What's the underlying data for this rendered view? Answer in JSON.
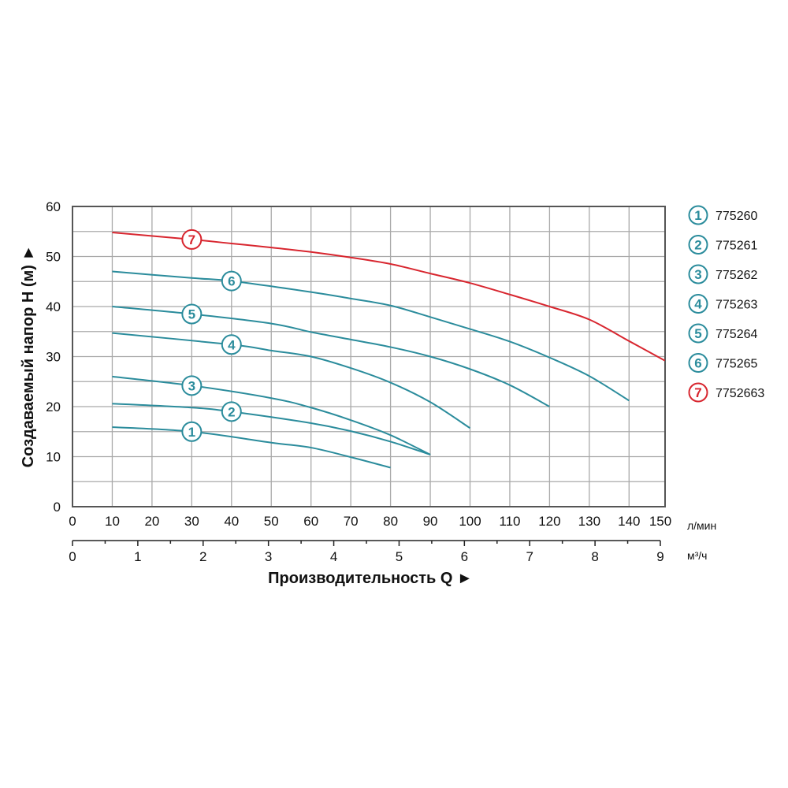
{
  "chart_data": {
    "type": "line",
    "title": "",
    "xlabel": "Производительность Q ►",
    "ylabel": "Создаваемый напор H (м) ►",
    "x_unit": "л/мин",
    "x2_unit": "м³/ч",
    "xlim": [
      0,
      150
    ],
    "ylim": [
      0,
      60
    ],
    "x2lim": [
      0,
      9
    ],
    "x_ticks": [
      "0",
      "10",
      "20",
      "30",
      "40",
      "50",
      "60",
      "70",
      "80",
      "90",
      "100",
      "110",
      "120",
      "130",
      "140",
      "150"
    ],
    "x2_ticks": [
      "0",
      "1",
      "2",
      "3",
      "4",
      "5",
      "6",
      "7",
      "8",
      "9"
    ],
    "y_ticks": [
      "0",
      "10",
      "20",
      "30",
      "40",
      "50",
      "60"
    ],
    "grid": true,
    "legend_position": "right",
    "colors": {
      "teal": "#2b8c9c",
      "red": "#d8262f",
      "grid": "#a9a9a9",
      "frame": "#555555"
    },
    "series": [
      {
        "name": "775260",
        "badge": "1",
        "color": "#2b8c9c",
        "x": [
          10,
          30,
          50,
          60,
          70,
          80
        ],
        "y": [
          15.9,
          15.0,
          12.8,
          11.8,
          9.9,
          7.8
        ]
      },
      {
        "name": "775261",
        "badge": "2",
        "color": "#2b8c9c",
        "x": [
          10,
          30,
          40,
          60,
          70,
          80,
          90
        ],
        "y": [
          20.6,
          19.8,
          19.0,
          16.7,
          15.1,
          13.0,
          10.4
        ]
      },
      {
        "name": "775262",
        "badge": "3",
        "color": "#2b8c9c",
        "x": [
          10,
          30,
          50,
          60,
          70,
          80,
          90
        ],
        "y": [
          26.0,
          24.2,
          21.7,
          19.8,
          17.3,
          14.3,
          10.4
        ]
      },
      {
        "name": "775263",
        "badge": "4",
        "color": "#2b8c9c",
        "x": [
          10,
          40,
          50,
          60,
          70,
          80,
          90,
          100
        ],
        "y": [
          34.7,
          32.4,
          31.2,
          30.0,
          27.7,
          24.8,
          20.9,
          15.7
        ]
      },
      {
        "name": "775264",
        "badge": "5",
        "color": "#2b8c9c",
        "x": [
          10,
          30,
          50,
          60,
          70,
          80,
          90,
          100,
          110,
          120
        ],
        "y": [
          40.0,
          38.5,
          36.6,
          34.9,
          33.4,
          31.9,
          30.0,
          27.5,
          24.3,
          20.0
        ]
      },
      {
        "name": "775265",
        "badge": "6",
        "color": "#2b8c9c",
        "x": [
          10,
          30,
          40,
          60,
          70,
          80,
          90,
          100,
          110,
          120,
          130,
          140
        ],
        "y": [
          47.0,
          45.7,
          45.1,
          42.9,
          41.6,
          40.2,
          37.9,
          35.5,
          33.0,
          29.8,
          26.1,
          21.2
        ]
      },
      {
        "name": "7752663",
        "badge": "7",
        "color": "#d8262f",
        "x": [
          10,
          30,
          40,
          50,
          60,
          70,
          80,
          90,
          100,
          110,
          120,
          130,
          140,
          149
        ],
        "y": [
          54.8,
          53.4,
          52.6,
          51.8,
          50.9,
          49.8,
          48.5,
          46.6,
          44.7,
          42.4,
          40.0,
          37.4,
          33.1,
          29.2
        ]
      }
    ]
  }
}
